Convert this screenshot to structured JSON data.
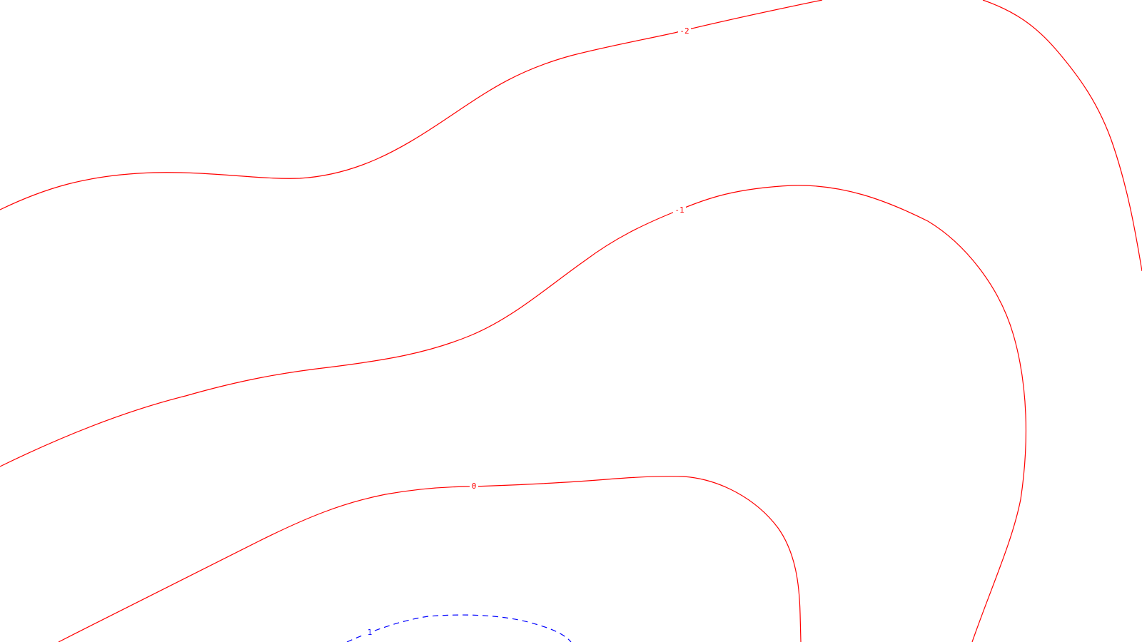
{
  "map": {
    "contours": [
      {
        "id": "contour-minus2",
        "label": "-2",
        "color": "#ff0000",
        "style": "solid"
      },
      {
        "id": "contour-minus1",
        "label": "-1",
        "color": "#ff0000",
        "style": "solid"
      },
      {
        "id": "contour-zero",
        "label": "0",
        "color": "#ff0000",
        "style": "solid"
      },
      {
        "id": "contour-right",
        "label": "",
        "color": "#ff0000",
        "style": "solid"
      },
      {
        "id": "contour-blue",
        "label": "1",
        "color": "#0000ff",
        "style": "dashed"
      }
    ]
  }
}
